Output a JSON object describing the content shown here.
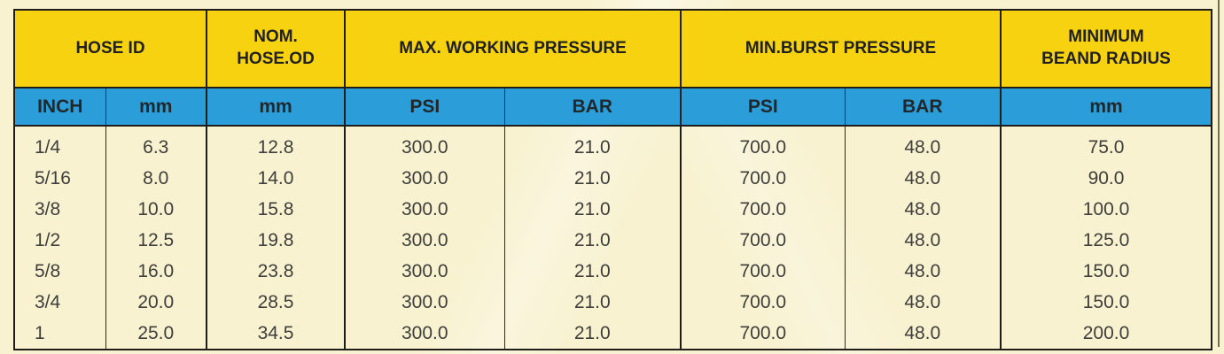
{
  "page": {
    "background_color": "#f8f2d0",
    "edge_line_color": "#75714f"
  },
  "table": {
    "colors": {
      "group_header_bg": "#f6d211",
      "unit_header_bg": "#2b9ed9",
      "border": "#1e1d1a",
      "body_text": "#3e3e3c"
    },
    "header_groups": [
      {
        "label": "HOSE ID"
      },
      {
        "line1": "NOM.",
        "line2": "HOSE.OD"
      },
      {
        "label": "MAX. WORKING PRESSURE"
      },
      {
        "label": "MIN.BURST PRESSURE"
      },
      {
        "line1": "MINIMUM",
        "line2": "BEAND RADIUS"
      }
    ],
    "unit_headers": [
      "INCH",
      "mm",
      "mm",
      "PSI",
      "BAR",
      "PSI",
      "BAR",
      "mm"
    ],
    "rows": [
      [
        "1/4",
        "6.3",
        "12.8",
        "300.0",
        "21.0",
        "700.0",
        "48.0",
        "75.0"
      ],
      [
        "5/16",
        "8.0",
        "14.0",
        "300.0",
        "21.0",
        "700.0",
        "48.0",
        "90.0"
      ],
      [
        "3/8",
        "10.0",
        "15.8",
        "300.0",
        "21.0",
        "700.0",
        "48.0",
        "100.0"
      ],
      [
        "1/2",
        "12.5",
        "19.8",
        "300.0",
        "21.0",
        "700.0",
        "48.0",
        "125.0"
      ],
      [
        "5/8",
        "16.0",
        "23.8",
        "300.0",
        "21.0",
        "700.0",
        "48.0",
        "150.0"
      ],
      [
        "3/4",
        "20.0",
        "28.5",
        "300.0",
        "21.0",
        "700.0",
        "48.0",
        "150.0"
      ],
      [
        "1",
        "25.0",
        "34.5",
        "300.0",
        "21.0",
        "700.0",
        "48.0",
        "200.0"
      ]
    ]
  },
  "chart_data": {
    "type": "table",
    "title": "Hose specification table",
    "columns": [
      "HOSE ID INCH",
      "HOSE ID mm",
      "NOM. HOSE.OD mm",
      "MAX. WORKING PRESSURE PSI",
      "MAX. WORKING PRESSURE BAR",
      "MIN.BURST PRESSURE PSI",
      "MIN.BURST PRESSURE BAR",
      "MINIMUM BEAND RADIUS mm"
    ],
    "rows": [
      [
        "1/4",
        6.3,
        12.8,
        300.0,
        21.0,
        700.0,
        48.0,
        75.0
      ],
      [
        "5/16",
        8.0,
        14.0,
        300.0,
        21.0,
        700.0,
        48.0,
        90.0
      ],
      [
        "3/8",
        10.0,
        15.8,
        300.0,
        21.0,
        700.0,
        48.0,
        100.0
      ],
      [
        "1/2",
        12.5,
        19.8,
        300.0,
        21.0,
        700.0,
        48.0,
        125.0
      ],
      [
        "5/8",
        16.0,
        23.8,
        300.0,
        21.0,
        700.0,
        48.0,
        150.0
      ],
      [
        "3/4",
        20.0,
        28.5,
        300.0,
        21.0,
        700.0,
        48.0,
        150.0
      ],
      [
        "1",
        25.0,
        34.5,
        300.0,
        21.0,
        700.0,
        48.0,
        200.0
      ]
    ]
  }
}
